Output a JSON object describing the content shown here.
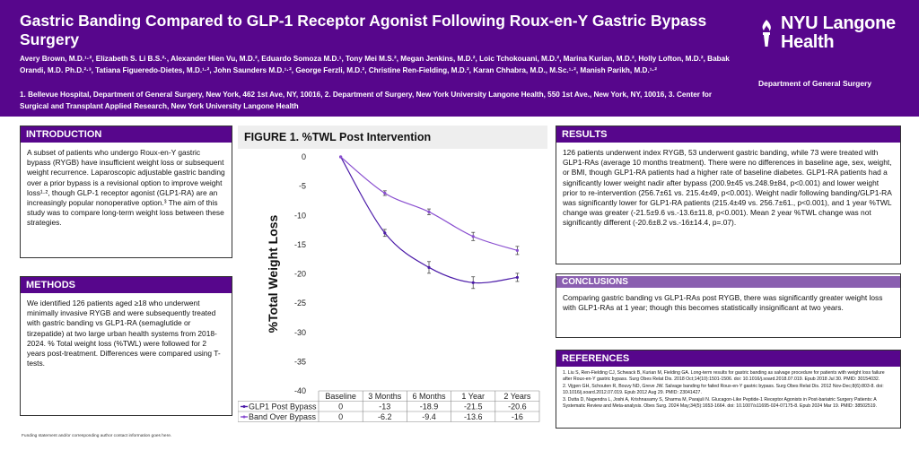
{
  "header": {
    "title": "Gastric Banding Compared to GLP-1 Receptor Agonist Following Roux-en-Y Gastric Bypass Surgery",
    "authors": "Avery Brown, M.D.¹·², Elizabeth S. Li B.S.²·, Alexander Hien Vu, M.D.², Eduardo Somoza M.D.¹, Tony Mei M.S.², Megan Jenkins, M.D.², Loic Tchokouani, M.D.², Marina Kurian, M.D.², Holly Lofton, M.D.², Babak Orandi, M.D. Ph.D.²·³, Tatiana Figueredo-Dietes, M.D.¹·², John Saunders M.D.¹·², George Ferzli, M.D.², Christine Ren-Fielding, M.D.², Karan Chhabra, M.D., M.Sc.¹·², Manish Parikh, M.D.¹·²",
    "affiliations": "1. Bellevue Hospital, Department of General Surgery, New York, 462 1st Ave, NY, 10016, 2. Department of Surgery, New York University Langone Health, 550 1st Ave., New York, NY, 10016, 3. Center for Surgical and Transplant Applied Research, New York University Langone Health",
    "logo_line1": "NYU Langone",
    "logo_line2": "Health",
    "department": "Department of General Surgery",
    "brand_color": "#57068c"
  },
  "introduction": {
    "heading": "INTRODUCTION",
    "body": "A subset of patients who undergo Roux-en-Y gastric bypass (RYGB) have insufficient weight loss or subsequent weight recurrence. Laparoscopic adjustable gastric banding over a prior bypass is a revisional option to improve weight loss¹·², though GLP-1 receptor agonist (GLP1-RA) are an increasingly popular nonoperative option.³ The aim of this study was to compare long-term weight loss between these strategies."
  },
  "methods": {
    "heading": "METHODS",
    "body": "We identified 126 patients aged ≥18 who underwent minimally invasive RYGB and were subsequently treated with gastric banding vs GLP1-RA (semaglutide or tirzepatide) at two large urban health systems from 2018-2024. % Total weight loss (%TWL) were followed for 2 years post-treatment. Differences were compared using T-tests."
  },
  "results": {
    "heading": "RESULTS",
    "body": "126 patients underwent index RYGB, 53 underwent gastric banding, while 73 were treated with GLP1-RAs (average 10 months treatment). There were no differences in baseline age, sex, weight, or BMI, though GLP1-RA patients had a higher rate of baseline diabetes. GLP1-RA patients had a significantly lower weight nadir after bypass (200.9±45 vs.248.9±84, p<0.001) and lower weight prior to re-intervention (256.7±61 vs. 215.4±49, p<0.001). Weight nadir following banding/GLP1-RA was significantly lower for GLP1-RA patients (215.4±49 vs. 256.7±61., p<0.001), and 1 year %TWL change was greater (-21.5±9.6 vs.-13.6±11.8, p<0.001). Mean 2 year %TWL change was not significantly different (-20.6±8.2 vs.-16±14.4, p=.07)."
  },
  "conclusions": {
    "heading": "CONCLUSIONS",
    "body": "Comparing gastric banding vs GLP1-RAs post RYGB, there was significantly greater weight loss with GLP1-RAs at 1 year; though this becomes statistically insignificant at two years."
  },
  "references": {
    "heading": "REFERENCES",
    "items": [
      "1. Liu S, Ren-Fielding CJ, Schwack B, Kurian M, Fielding GA. Long-term results for gastric banding as salvage procedure for patients with weight loss failure after Roux-en-Y gastric bypass. Surg Obes Relat Dis. 2018 Oct;14(10):1501-1506. doi: 10.1016/j.soard.2018.07.019. Epub 2018 Jul 30. PMID: 30154032.",
      "2. Vijgen GH, Schouten R, Bouvy ND, Greve JW. Salvage banding for failed Roux-en-Y gastric bypass. Surg Obes Relat Dis. 2012 Nov-Dec;8(6):803-8. doi: 10.1016/j.soard.2012.07.019. Epub 2012 Aug 29. PMID: 23041427.",
      "3. Dutta D, Nagendra L, Joshi A, Krishnasamy S, Sharma M, Parajuli N. Glucagon-Like Peptide-1 Receptor Agonists in Post-bariatric Surgery Patients: A Systematic Review and Meta-analysis. Obes Surg. 2024 May;34(5):1653-1664. doi: 10.1007/s11695-024-07175-8. Epub 2024 Mar 19. PMID: 38502519."
    ]
  },
  "footnote": "Funding statement and/or corresponding author contact information goes here.",
  "chart_data": {
    "type": "line",
    "title": "FIGURE 1. %TWL Post Intervention",
    "ylabel": "%Total Weight Loss",
    "xlabel": "",
    "categories": [
      "Baseline",
      "3 Months",
      "6 Months",
      "1 Year",
      "2 Years"
    ],
    "ylim": [
      -40,
      0
    ],
    "yticks": [
      0,
      -5,
      -10,
      -15,
      -20,
      -25,
      -30,
      -35,
      -40
    ],
    "grid": false,
    "legend": "data-table",
    "series": [
      {
        "name": "GLP1 Post Bypass",
        "values": [
          0,
          -13,
          -18.9,
          -21.5,
          -20.6
        ],
        "value_labels": [
          "0",
          "-13",
          "-18.9",
          "-21.5",
          "-20.6"
        ],
        "err": [
          0,
          0.6,
          1.0,
          1.0,
          0.7
        ],
        "color": "#4b1aa8"
      },
      {
        "name": "Band Over Bypass",
        "values": [
          0,
          -6.2,
          -9.4,
          -13.6,
          -16
        ],
        "value_labels": [
          "0",
          "-6.2",
          "-9.4",
          "-13.6",
          "-16"
        ],
        "err": [
          0,
          0.4,
          0.5,
          0.7,
          0.7
        ],
        "color": "#8a4fd0"
      }
    ]
  }
}
